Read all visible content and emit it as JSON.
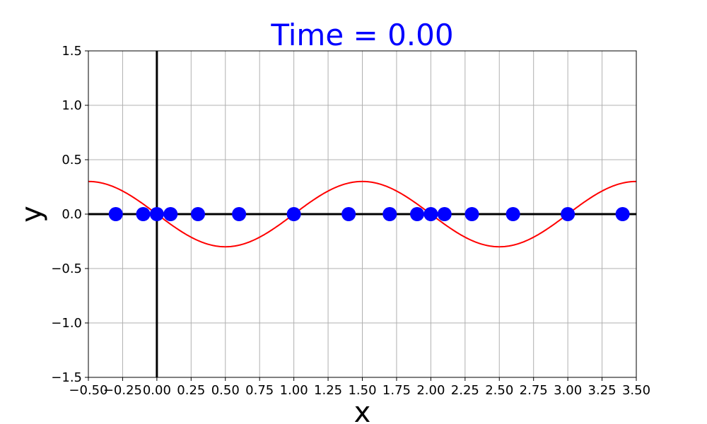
{
  "chart_data": {
    "type": "scatter",
    "title": "Time = 0.00",
    "xlabel": "x",
    "ylabel": "y",
    "xlim": [
      -0.5,
      3.5
    ],
    "ylim": [
      -1.5,
      1.5
    ],
    "x_ticks": [
      -0.5,
      -0.25,
      0.0,
      0.25,
      0.5,
      0.75,
      1.0,
      1.25,
      1.5,
      1.75,
      2.0,
      2.25,
      2.5,
      2.75,
      3.0,
      3.25,
      3.5
    ],
    "x_tick_labels": [
      "−0.50",
      "−0.25",
      "0.00",
      "0.25",
      "0.50",
      "0.75",
      "1.00",
      "1.25",
      "1.50",
      "1.75",
      "2.00",
      "2.25",
      "2.50",
      "2.75",
      "3.00",
      "3.25",
      "3.50"
    ],
    "y_ticks": [
      -1.5,
      -1.0,
      -0.5,
      0.0,
      0.5,
      1.0,
      1.5
    ],
    "y_tick_labels": [
      "−1.5",
      "−1.0",
      "−0.5",
      "0.0",
      "0.5",
      "1.0",
      "1.5"
    ],
    "grid": true,
    "series": [
      {
        "type": "scatter",
        "x": [
          -0.3,
          -0.1,
          0.0,
          0.1,
          0.3,
          0.6,
          1.0,
          1.4,
          1.7,
          1.9,
          2.0,
          2.1,
          2.3,
          2.6,
          3.0,
          3.4
        ],
        "y": [
          0,
          0,
          0,
          0,
          0,
          0,
          0,
          0,
          0,
          0,
          0,
          0,
          0,
          0,
          0,
          0
        ],
        "color": "#0000ff"
      },
      {
        "type": "line",
        "function": "-0.3*sin(pi*x)",
        "x_range": [
          -0.5,
          3.5
        ],
        "color": "#ff0000"
      }
    ],
    "colors": {
      "title": "#0000ff",
      "grid": "#b0b0b0",
      "axes_lines": "#000000"
    }
  }
}
